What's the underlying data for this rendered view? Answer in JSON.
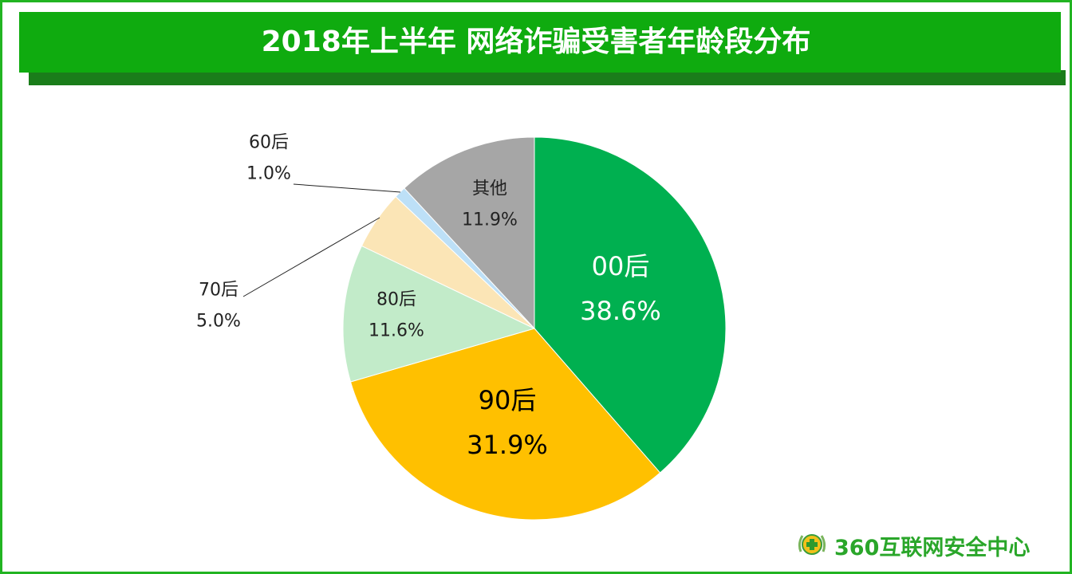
{
  "title": "2018年上半年 网络诈骗受害者年龄段分布",
  "logo": {
    "text": "360互联网安全中心",
    "icon": "360-shield-logo-icon"
  },
  "colors": {
    "frame": "#22b422",
    "title_bar": "#0fab0f",
    "title_shadow": "#1a7d1a"
  },
  "chart_data": {
    "type": "pie",
    "title": "2018年上半年 网络诈骗受害者年龄段分布",
    "start": "12 o'clock, clockwise",
    "slices": [
      {
        "label": "00后",
        "value": 38.6,
        "display": "38.6%",
        "color": "#00b050",
        "text_color": "#ffffff"
      },
      {
        "label": "90后",
        "value": 31.9,
        "display": "31.9%",
        "color": "#ffc000",
        "text_color": "#000000"
      },
      {
        "label": "80后",
        "value": 11.6,
        "display": "11.6%",
        "color": "#c2ebc9",
        "text_color": "#222222"
      },
      {
        "label": "70后",
        "value": 5.0,
        "display": "5.0%",
        "color": "#fbe5b6",
        "text_color": "#222222"
      },
      {
        "label": "60后",
        "value": 1.0,
        "display": "1.0%",
        "color": "#bde0f7",
        "text_color": "#222222"
      },
      {
        "label": "其他",
        "value": 11.9,
        "display": "11.9%",
        "color": "#a6a6a6",
        "text_color": "#222222"
      }
    ]
  }
}
